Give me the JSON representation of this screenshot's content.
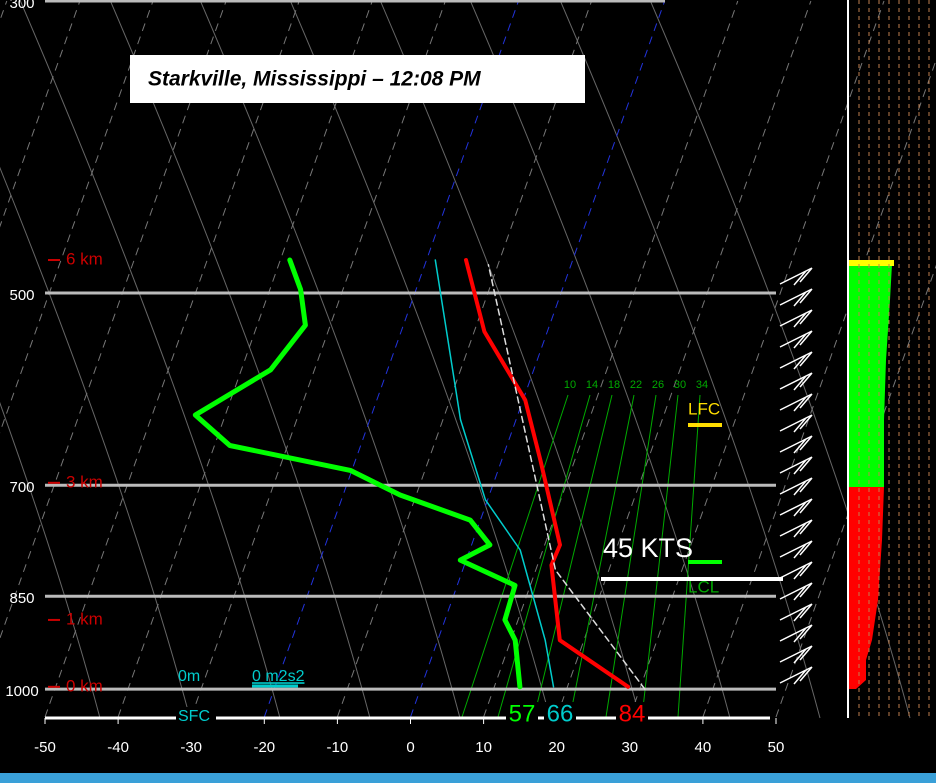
{
  "chart_data": {
    "type": "skewt",
    "title": "Starkville, Mississippi – 12:08 PM",
    "xlim": [
      -50,
      50
    ],
    "xticks": [
      -50,
      -40,
      -30,
      -20,
      -10,
      0,
      10,
      20,
      30,
      40,
      50
    ],
    "ylim": [
      1050,
      300
    ],
    "yticks": [
      300,
      500,
      700,
      850,
      1000
    ],
    "log_scale": true,
    "grid": true,
    "series": [
      {
        "color": "#ff0000",
        "width": 4,
        "pressure": [
          996,
          918,
          805,
          777,
          670,
          603,
          535,
          472
        ],
        "values": [
          28.3,
          16.7,
          11.9,
          12.1,
          5.3,
          0.3,
          -8.6,
          -14.6
        ]
      },
      {
        "color": "#00ff00",
        "width": 5,
        "pressure": [
          996,
          918,
          886,
          834,
          798,
          777,
          744,
          712,
          682,
          653,
          619,
          572,
          529,
          497,
          472
        ],
        "values": [
          13.5,
          10.6,
          8.2,
          7.9,
          -0.8,
          2.5,
          -1.4,
          -12.2,
          -20.2,
          -37.9,
          -44.1,
          -36,
          -33.4,
          -35.8,
          -38.7
        ]
      },
      {
        "color": "#00cccc",
        "width": 1.5,
        "pressure": [
          996,
          918,
          784,
          718,
          624,
          472
        ],
        "values": [
          18.1,
          14.7,
          6.9,
          -0.3,
          -7.6,
          -18.8
        ]
      },
      {
        "color": "#dddddd",
        "width": 1.5,
        "dashed": true,
        "pressure": [
          1000,
          812,
          476
        ],
        "values": [
          30.7,
          12.7,
          -11.3
        ]
      }
    ],
    "height_labels": [
      {
        "label": "6 km",
        "pressure": 472
      },
      {
        "label": "3 km",
        "pressure": 697
      },
      {
        "label": "1 km",
        "pressure": 886
      },
      {
        "label": "0 km",
        "pressure": 996
      }
    ],
    "mixing_ratio_labels": [
      10,
      14,
      18,
      22,
      26,
      30,
      34
    ],
    "annotations": {
      "lfc": "LFC",
      "lcl": "LCL",
      "wind": "45 KTS",
      "height0": "0m",
      "helicity": "0 m2s2",
      "sfc": "SFC"
    },
    "surface_values": [
      {
        "value": 57,
        "color": "#00ff00"
      },
      {
        "value": 66,
        "color": "#00cccc"
      },
      {
        "value": 84,
        "color": "#ff0000"
      }
    ]
  }
}
